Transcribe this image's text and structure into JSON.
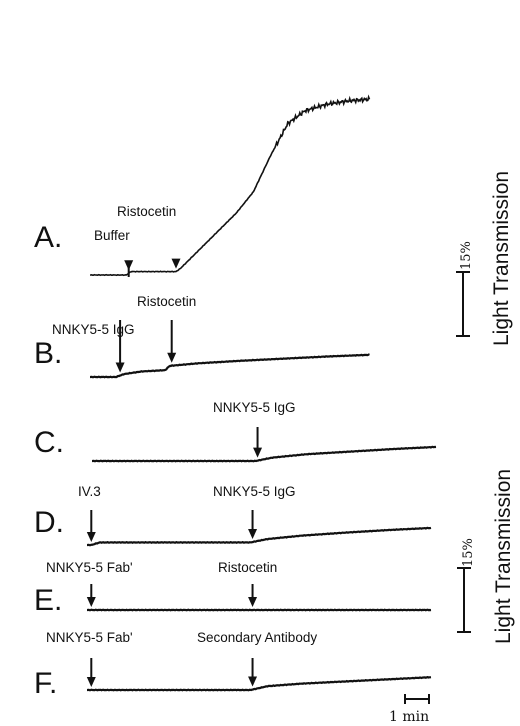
{
  "chart_data": {
    "type": "line",
    "panels": [
      {
        "label": "A.",
        "annotations": [
          {
            "text": "Buffer",
            "time_min": 0.9
          },
          {
            "text": "Ristocetin",
            "time_min": 2.0
          }
        ],
        "series": [
          {
            "t": [
              0,
              0.85,
              0.95,
              2.0,
              2.1,
              2.5,
              3.0,
              3.4,
              3.8,
              4.2,
              4.6,
              5.0,
              5.5,
              6.0,
              6.5
            ],
            "y": [
              0,
              0,
              0.8,
              0.8,
              1.5,
              5.5,
              10.5,
              14.5,
              19.5,
              28.0,
              35.5,
              38.5,
              40.0,
              40.8,
              41.2
            ]
          }
        ]
      },
      {
        "label": "B.",
        "annotations": [
          {
            "text": "NNKY5-5 IgG",
            "time_min": 0.7
          },
          {
            "text": "Ristocetin",
            "time_min": 1.9
          }
        ],
        "series": [
          {
            "t": [
              0,
              0.6,
              0.8,
              1.2,
              1.75,
              1.85,
              2.5,
              3.5,
              4.5,
              5.5,
              6.5
            ],
            "y": [
              0,
              0,
              0.7,
              1.3,
              1.6,
              2.6,
              3.2,
              3.8,
              4.3,
              4.8,
              5.2
            ]
          }
        ]
      },
      {
        "label": "C.",
        "annotations": [
          {
            "text": "NNKY5-5 IgG",
            "time_min": 3.85
          }
        ],
        "series": [
          {
            "t": [
              0,
              1.0,
              2.0,
              3.0,
              3.8,
              4.2,
              5.0,
              6.0,
              7.0,
              8.0
            ],
            "y": [
              0,
              0,
              0,
              0,
              0,
              0.8,
              1.6,
              2.2,
              2.8,
              3.3
            ]
          }
        ]
      },
      {
        "label": "D.",
        "annotations": [
          {
            "text": "IV.3",
            "time_min": 0.1
          },
          {
            "text": "NNKY5-5 IgG",
            "time_min": 3.85
          }
        ],
        "series": [
          {
            "t": [
              0,
              0.1,
              0.3,
              1.5,
              3.0,
              3.8,
              4.2,
              5.0,
              6.0,
              7.0,
              8.0
            ],
            "y": [
              0,
              0,
              0.6,
              0.6,
              0.6,
              0.6,
              1.4,
              2.2,
              2.9,
              3.5,
              4.0
            ]
          }
        ]
      },
      {
        "label": "E.",
        "annotations": [
          {
            "text": "NNKY5-5 Fab'",
            "time_min": 0.1
          },
          {
            "text": "Ristocetin",
            "time_min": 3.85
          }
        ],
        "series": [
          {
            "t": [
              0,
              1.0,
              2.0,
              3.0,
              4.0,
              5.0,
              6.0,
              7.0,
              8.0
            ],
            "y": [
              0,
              0,
              0,
              0,
              0,
              0,
              0,
              0,
              0
            ]
          }
        ]
      },
      {
        "label": "F.",
        "annotations": [
          {
            "text": "NNKY5-5 Fab'",
            "time_min": 0.1
          },
          {
            "text": "Secondary Antibody",
            "time_min": 3.85
          }
        ],
        "series": [
          {
            "t": [
              0,
              1.0,
              2.0,
              3.0,
              3.8,
              4.2,
              5.0,
              6.0,
              7.0,
              8.0
            ],
            "y": [
              0,
              0,
              0,
              0,
              0,
              0.9,
              1.5,
              2.0,
              2.5,
              3.0
            ]
          }
        ]
      }
    ],
    "scale_bars": [
      {
        "value": "15%",
        "label": "Light Transmission"
      },
      {
        "value": "15%",
        "label": "Light Transmission"
      }
    ],
    "time_scale": "1 min",
    "grid": false
  }
}
